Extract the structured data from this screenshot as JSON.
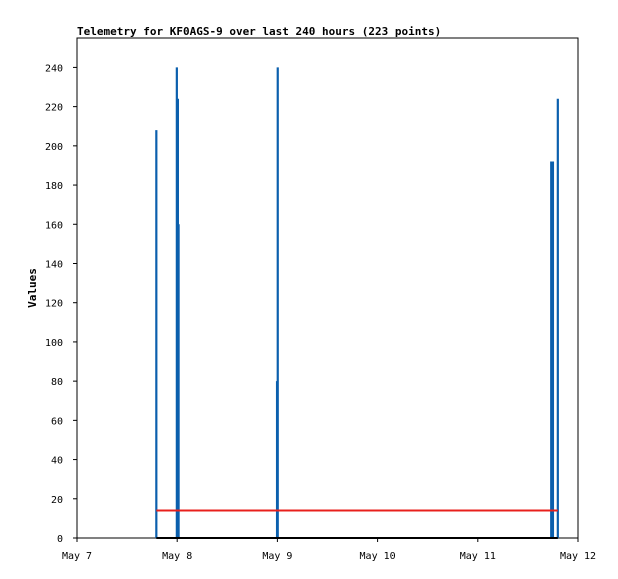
{
  "chart_data": {
    "type": "line",
    "title": "Telemetry for KF0AGS-9 over last 240 hours (223 points)",
    "xlabel": "",
    "ylabel": "Values",
    "xlim": [
      "May 7",
      "May 12"
    ],
    "ylim": [
      0,
      255
    ],
    "x_ticks": [
      "May 7",
      "May 8",
      "May 9",
      "May 10",
      "May 11",
      "May 12"
    ],
    "y_ticks": [
      0,
      20,
      40,
      60,
      80,
      100,
      120,
      140,
      160,
      180,
      200,
      220,
      240
    ],
    "grid": false,
    "legend": "none",
    "series": [
      {
        "color": "#0b5fad",
        "kind": "spikes",
        "points": [
          {
            "x": "May 7 19:00",
            "y": 208
          },
          {
            "x": "May 7 23:55",
            "y": 240
          },
          {
            "x": "May 8 00:10",
            "y": 224
          },
          {
            "x": "May 8 00:20",
            "y": 160
          },
          {
            "x": "May 8 23:55",
            "y": 80
          },
          {
            "x": "May 9 00:05",
            "y": 240
          },
          {
            "x": "May 11 17:35",
            "y": 192
          },
          {
            "x": "May 11 18:00",
            "y": 192
          },
          {
            "x": "May 11 19:10",
            "y": 224
          }
        ]
      },
      {
        "color": "#e8201c",
        "kind": "line",
        "points": [
          {
            "x": "May 7 19:00",
            "y": 14
          },
          {
            "x": "May 11 19:10",
            "y": 14
          }
        ]
      },
      {
        "color": "#000000",
        "kind": "line",
        "points": [
          {
            "x": "May 7 19:00",
            "y": 0
          },
          {
            "x": "May 11 19:10",
            "y": 0
          }
        ]
      }
    ]
  }
}
